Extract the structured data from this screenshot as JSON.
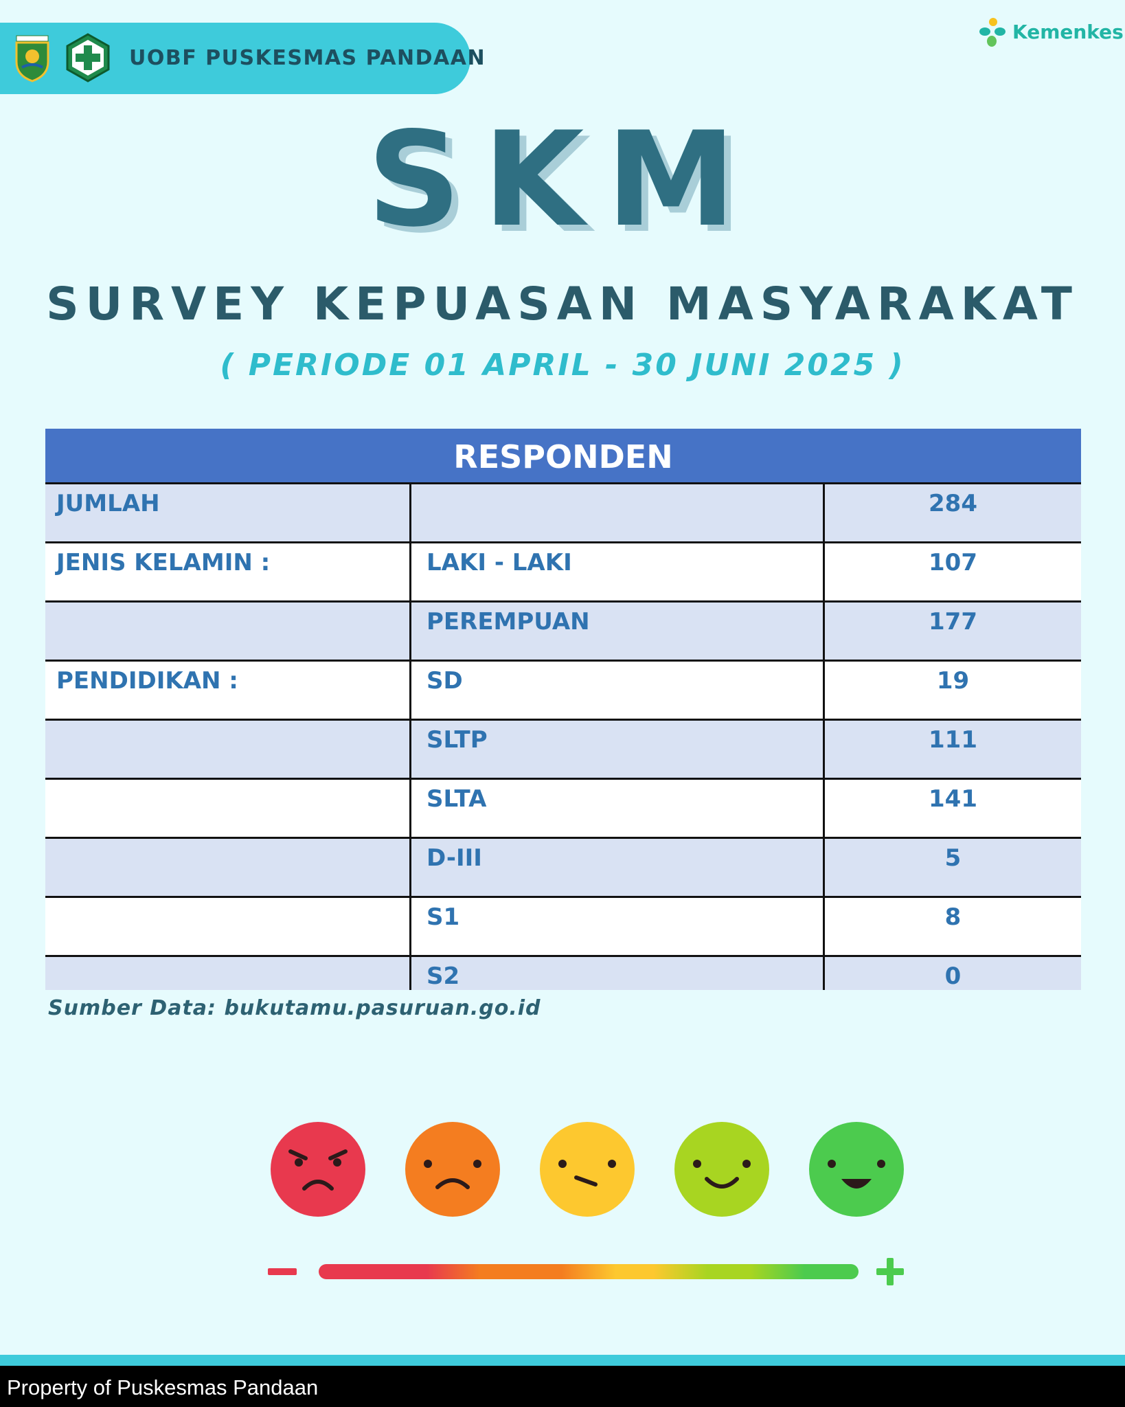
{
  "header": {
    "title": "UOBF PUSKESMAS PANDAAN",
    "brand": "Kemenkes"
  },
  "hero": {
    "acronym": "SKM",
    "title": "SURVEY KEPUASAN MASYARAKAT",
    "period": "( PERIODE 01 APRIL - 30 JUNI 2025 )"
  },
  "table": {
    "heading": "RESPONDEN",
    "rows": [
      {
        "group": "JUMLAH",
        "item": "",
        "value": "284"
      },
      {
        "group": "JENIS KELAMIN :",
        "item": "LAKI - LAKI",
        "value": "107"
      },
      {
        "group": "",
        "item": "PEREMPUAN",
        "value": "177"
      },
      {
        "group": "PENDIDIKAN :",
        "item": "SD",
        "value": "19"
      },
      {
        "group": "",
        "item": "SLTP",
        "value": "111"
      },
      {
        "group": "",
        "item": "SLTA",
        "value": "141"
      },
      {
        "group": "",
        "item": "D-III",
        "value": "5"
      },
      {
        "group": "",
        "item": "S1",
        "value": "8"
      },
      {
        "group": "",
        "item": "S2",
        "value": "0"
      }
    ]
  },
  "source": "Sumber Data: bukutamu.pasuruan.go.id",
  "rating_scale": {
    "faces": [
      "very-unhappy-face-icon",
      "unhappy-face-icon",
      "neutral-face-icon",
      "happy-face-icon",
      "very-happy-face-icon"
    ],
    "colors": [
      "#e8394e",
      "#f47d20",
      "#fdc82f",
      "#a8d521",
      "#4ccb4e"
    ],
    "min_symbol": "−",
    "max_symbol": "+"
  },
  "footer": {
    "text": "Property of Puskesmas Pandaan"
  },
  "colors": {
    "accent": "#3ecbdb",
    "table_header": "#4673c6",
    "table_text": "#2f73b0",
    "title": "#2f6f82"
  }
}
